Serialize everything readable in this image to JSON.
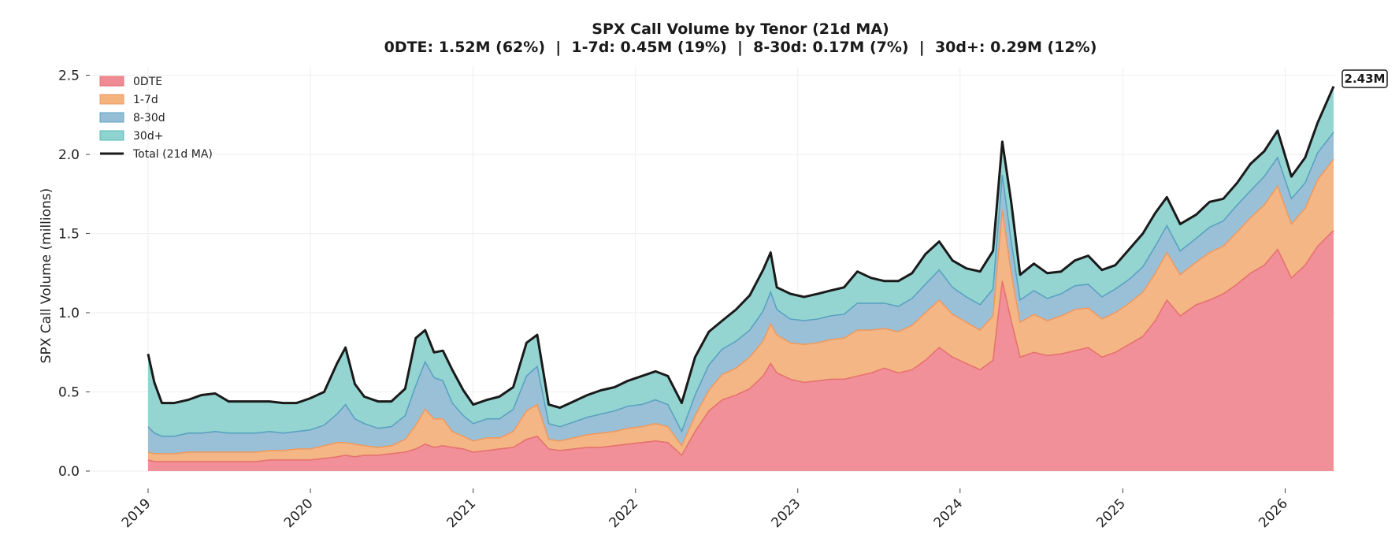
{
  "chart_data": {
    "type": "area",
    "title": "SPX Call Volume by Tenor (21d MA)",
    "subtitle": "0DTE: 1.52M (62%)  |  1-7d: 0.45M (19%)  |  8-30d: 0.17M (7%)  |  30d+: 0.29M (12%)",
    "xlabel": "",
    "ylabel": "SPX Call Volume (millions)",
    "ylim": [
      0,
      2.55
    ],
    "yticks": [
      0.0,
      0.5,
      1.0,
      1.5,
      2.0,
      2.5
    ],
    "ytick_labels": [
      "0.0",
      "0.5",
      "1.0",
      "1.5",
      "2.0",
      "2.5"
    ],
    "xlim": [
      "2019-01-01",
      "2026-04-20"
    ],
    "xticks": [
      "2019-01-01",
      "2020-01-01",
      "2021-01-01",
      "2022-01-01",
      "2023-01-01",
      "2024-01-01",
      "2025-01-01",
      "2026-01-01"
    ],
    "xtick_labels": [
      "2019",
      "2020",
      "2021",
      "2022",
      "2023",
      "2024",
      "2025",
      "2026"
    ],
    "grid": true,
    "legend_position": "top-left",
    "end_label": "2.43M",
    "stacked": true,
    "x": [
      "2019-01-01",
      "2019-01-15",
      "2019-02-01",
      "2019-03-01",
      "2019-04-01",
      "2019-05-01",
      "2019-06-01",
      "2019-07-01",
      "2019-08-01",
      "2019-09-01",
      "2019-10-01",
      "2019-11-01",
      "2019-12-01",
      "2020-01-01",
      "2020-02-01",
      "2020-03-01",
      "2020-03-20",
      "2020-04-10",
      "2020-05-01",
      "2020-06-01",
      "2020-07-01",
      "2020-08-01",
      "2020-08-25",
      "2020-09-15",
      "2020-10-05",
      "2020-10-25",
      "2020-11-15",
      "2020-12-10",
      "2021-01-01",
      "2021-02-01",
      "2021-03-01",
      "2021-04-01",
      "2021-05-01",
      "2021-05-25",
      "2021-06-20",
      "2021-07-15",
      "2021-08-15",
      "2021-09-15",
      "2021-10-15",
      "2021-11-15",
      "2021-12-15",
      "2022-01-15",
      "2022-02-15",
      "2022-03-15",
      "2022-04-15",
      "2022-05-15",
      "2022-06-15",
      "2022-07-15",
      "2022-08-15",
      "2022-09-15",
      "2022-10-15",
      "2022-11-01",
      "2022-11-15",
      "2022-12-15",
      "2023-01-15",
      "2023-02-15",
      "2023-03-15",
      "2023-04-15",
      "2023-05-15",
      "2023-06-15",
      "2023-07-15",
      "2023-08-15",
      "2023-09-15",
      "2023-10-15",
      "2023-11-15",
      "2023-12-15",
      "2024-01-15",
      "2024-02-15",
      "2024-03-15",
      "2024-04-05",
      "2024-04-25",
      "2024-05-15",
      "2024-06-15",
      "2024-07-15",
      "2024-08-15",
      "2024-09-15",
      "2024-10-15",
      "2024-11-15",
      "2024-12-15",
      "2025-01-15",
      "2025-02-15",
      "2025-03-15",
      "2025-04-10",
      "2025-05-10",
      "2025-06-15",
      "2025-07-15",
      "2025-08-15",
      "2025-09-15",
      "2025-10-15",
      "2025-11-15",
      "2025-12-15",
      "2026-01-15",
      "2026-02-15",
      "2026-03-15",
      "2026-04-20"
    ],
    "series": [
      {
        "name": "0DTE",
        "color": "#f08a94",
        "line_color": "#e6736f",
        "values": [
          0.07,
          0.06,
          0.06,
          0.06,
          0.06,
          0.06,
          0.06,
          0.06,
          0.06,
          0.06,
          0.07,
          0.07,
          0.07,
          0.07,
          0.08,
          0.09,
          0.1,
          0.09,
          0.1,
          0.1,
          0.11,
          0.12,
          0.14,
          0.17,
          0.15,
          0.16,
          0.15,
          0.14,
          0.12,
          0.13,
          0.14,
          0.15,
          0.2,
          0.22,
          0.14,
          0.13,
          0.14,
          0.15,
          0.15,
          0.16,
          0.17,
          0.18,
          0.19,
          0.18,
          0.1,
          0.25,
          0.38,
          0.45,
          0.48,
          0.52,
          0.6,
          0.68,
          0.62,
          0.58,
          0.56,
          0.57,
          0.58,
          0.58,
          0.6,
          0.62,
          0.65,
          0.62,
          0.64,
          0.7,
          0.78,
          0.72,
          0.68,
          0.64,
          0.7,
          1.2,
          0.95,
          0.72,
          0.75,
          0.73,
          0.74,
          0.76,
          0.78,
          0.72,
          0.75,
          0.8,
          0.85,
          0.95,
          1.08,
          0.98,
          1.05,
          1.08,
          1.12,
          1.18,
          1.25,
          1.3,
          1.4,
          1.22,
          1.3,
          1.42,
          1.52
        ]
      },
      {
        "name": "1-7d",
        "color": "#f3b27e",
        "line_color": "#ec9a62",
        "values": [
          0.05,
          0.05,
          0.05,
          0.05,
          0.06,
          0.06,
          0.06,
          0.06,
          0.06,
          0.06,
          0.06,
          0.06,
          0.07,
          0.07,
          0.08,
          0.09,
          0.08,
          0.08,
          0.06,
          0.05,
          0.05,
          0.08,
          0.15,
          0.22,
          0.18,
          0.17,
          0.1,
          0.08,
          0.07,
          0.08,
          0.07,
          0.1,
          0.18,
          0.2,
          0.06,
          0.06,
          0.07,
          0.08,
          0.09,
          0.09,
          0.1,
          0.1,
          0.11,
          0.1,
          0.06,
          0.1,
          0.13,
          0.16,
          0.17,
          0.2,
          0.22,
          0.25,
          0.24,
          0.23,
          0.24,
          0.24,
          0.25,
          0.26,
          0.29,
          0.27,
          0.25,
          0.26,
          0.28,
          0.3,
          0.3,
          0.27,
          0.26,
          0.25,
          0.28,
          0.45,
          0.3,
          0.22,
          0.24,
          0.22,
          0.24,
          0.26,
          0.25,
          0.24,
          0.25,
          0.26,
          0.28,
          0.3,
          0.3,
          0.26,
          0.27,
          0.3,
          0.3,
          0.33,
          0.35,
          0.38,
          0.4,
          0.34,
          0.36,
          0.42,
          0.45
        ]
      },
      {
        "name": "8-30d",
        "color": "#95bdd6",
        "line_color": "#5aa2c0",
        "values": [
          0.16,
          0.13,
          0.11,
          0.11,
          0.12,
          0.12,
          0.13,
          0.12,
          0.12,
          0.12,
          0.12,
          0.11,
          0.11,
          0.12,
          0.13,
          0.18,
          0.24,
          0.16,
          0.14,
          0.12,
          0.12,
          0.15,
          0.25,
          0.3,
          0.26,
          0.24,
          0.18,
          0.13,
          0.11,
          0.12,
          0.12,
          0.14,
          0.22,
          0.24,
          0.1,
          0.09,
          0.1,
          0.11,
          0.12,
          0.13,
          0.14,
          0.14,
          0.15,
          0.14,
          0.09,
          0.13,
          0.16,
          0.16,
          0.17,
          0.17,
          0.19,
          0.2,
          0.16,
          0.15,
          0.15,
          0.15,
          0.15,
          0.15,
          0.17,
          0.17,
          0.16,
          0.16,
          0.17,
          0.18,
          0.19,
          0.17,
          0.16,
          0.16,
          0.17,
          0.22,
          0.2,
          0.14,
          0.15,
          0.14,
          0.14,
          0.15,
          0.15,
          0.14,
          0.15,
          0.15,
          0.16,
          0.17,
          0.17,
          0.15,
          0.15,
          0.16,
          0.16,
          0.17,
          0.17,
          0.18,
          0.18,
          0.16,
          0.16,
          0.17,
          0.17
        ]
      },
      {
        "name": "30d+",
        "color": "#8ed3d0",
        "line_color": "#5ab8b5",
        "values": [
          0.46,
          0.32,
          0.21,
          0.21,
          0.21,
          0.24,
          0.24,
          0.2,
          0.2,
          0.2,
          0.19,
          0.19,
          0.18,
          0.2,
          0.21,
          0.32,
          0.36,
          0.22,
          0.17,
          0.17,
          0.16,
          0.17,
          0.3,
          0.2,
          0.16,
          0.19,
          0.21,
          0.16,
          0.12,
          0.12,
          0.14,
          0.14,
          0.21,
          0.2,
          0.12,
          0.12,
          0.13,
          0.14,
          0.15,
          0.15,
          0.16,
          0.18,
          0.18,
          0.18,
          0.18,
          0.24,
          0.21,
          0.18,
          0.2,
          0.22,
          0.26,
          0.25,
          0.14,
          0.16,
          0.15,
          0.16,
          0.16,
          0.17,
          0.2,
          0.16,
          0.14,
          0.16,
          0.16,
          0.19,
          0.18,
          0.17,
          0.18,
          0.21,
          0.24,
          0.21,
          0.25,
          0.16,
          0.17,
          0.16,
          0.14,
          0.16,
          0.18,
          0.17,
          0.15,
          0.19,
          0.21,
          0.21,
          0.18,
          0.17,
          0.15,
          0.16,
          0.14,
          0.14,
          0.17,
          0.16,
          0.17,
          0.14,
          0.16,
          0.19,
          0.29
        ]
      }
    ],
    "total": {
      "name": "Total (21d MA)",
      "color": "#1a1a1a"
    }
  }
}
